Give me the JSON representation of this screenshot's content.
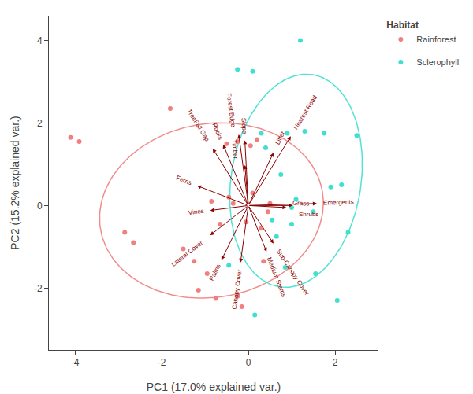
{
  "chart_data": {
    "type": "scatter",
    "xlabel": "PC1 (17.0% explained var.)",
    "ylabel": "PC2 (15.2% explained var.)",
    "xlim": [
      -4.6,
      3.0
    ],
    "ylim": [
      -3.5,
      4.6
    ],
    "xticks": [
      -4,
      -2,
      0,
      2
    ],
    "yticks": [
      -2,
      0,
      2,
      4
    ],
    "grid": false,
    "legend": "upper right",
    "legend_title": "Habitat",
    "series": [
      {
        "name": "Rainforest",
        "color": "#F08080",
        "marker": "circle",
        "values": [
          [
            -4.1,
            1.65
          ],
          [
            -3.9,
            1.55
          ],
          [
            -2.85,
            -0.65
          ],
          [
            -2.65,
            -0.9
          ],
          [
            -1.8,
            2.35
          ],
          [
            -1.5,
            -1.05
          ],
          [
            -1.25,
            -1.35
          ],
          [
            -1.15,
            -2.05
          ],
          [
            -0.95,
            -1.65
          ],
          [
            -0.85,
            0.1
          ],
          [
            -0.75,
            -2.25
          ],
          [
            -0.65,
            -0.45
          ],
          [
            -0.5,
            1.5
          ],
          [
            -0.45,
            0.2
          ],
          [
            -0.35,
            0.05
          ],
          [
            -0.25,
            1.55
          ],
          [
            -0.25,
            -2.2
          ],
          [
            -0.15,
            -2.45
          ],
          [
            -0.05,
            -0.4
          ],
          [
            0.05,
            1.45
          ],
          [
            0.1,
            0.3
          ],
          [
            0.2,
            1.6
          ],
          [
            0.3,
            -0.55
          ],
          [
            0.35,
            -1.35
          ],
          [
            0.45,
            -0.15
          ],
          [
            0.5,
            0.05
          ]
        ],
        "ellipse": {
          "cx": -0.85,
          "cy": -0.12,
          "width": 5.2,
          "height": 4.2,
          "angle": 12
        }
      },
      {
        "name": "Sclerophyll",
        "color": "#40E0D0",
        "marker": "circle",
        "values": [
          [
            -0.45,
            -1.45
          ],
          [
            -0.25,
            3.3
          ],
          [
            0.1,
            3.25
          ],
          [
            0.15,
            -2.65
          ],
          [
            0.3,
            1.75
          ],
          [
            0.4,
            1.4
          ],
          [
            0.55,
            -0.35
          ],
          [
            0.65,
            -0.75
          ],
          [
            0.75,
            0.75
          ],
          [
            0.85,
            -1.5
          ],
          [
            0.9,
            1.75
          ],
          [
            1.0,
            -0.05
          ],
          [
            1.0,
            -0.45
          ],
          [
            1.1,
            0.15
          ],
          [
            1.2,
            4.0
          ],
          [
            1.3,
            1.8
          ],
          [
            1.5,
            -0.15
          ],
          [
            1.55,
            -1.65
          ],
          [
            1.75,
            1.75
          ],
          [
            1.9,
            0.45
          ],
          [
            2.05,
            -2.3
          ],
          [
            2.15,
            0.5
          ],
          [
            2.3,
            -0.65
          ],
          [
            2.5,
            1.7
          ]
        ],
        "ellipse": {
          "cx": 1.1,
          "cy": 0.6,
          "width": 3.0,
          "height": 5.2,
          "angle": -8
        }
      }
    ],
    "annotations": [
      {
        "text": "TreeFall Gap",
        "x": -0.82,
        "y": 1.38,
        "color": "#8B0000"
      },
      {
        "text": "Rocks",
        "x": -0.58,
        "y": 1.48,
        "color": "#8B0000"
      },
      {
        "text": "Slope",
        "x": -0.08,
        "y": 1.58,
        "color": "#8B0000"
      },
      {
        "text": "Forest Edge",
        "x": -0.22,
        "y": 1.72,
        "color": "#8B0000"
      },
      {
        "text": "Timber",
        "x": -0.08,
        "y": 0.98,
        "color": "#8B0000"
      },
      {
        "text": "Litter",
        "x": 0.58,
        "y": 1.28,
        "color": "#8B0000"
      },
      {
        "text": "Nearest Road",
        "x": 0.98,
        "y": 1.68,
        "color": "#8B0000"
      },
      {
        "text": "Emergents",
        "x": 1.58,
        "y": 0.05,
        "color": "#8B0000"
      },
      {
        "text": "Shrubs",
        "x": 1.02,
        "y": 0.0,
        "color": "#8B0000"
      },
      {
        "text": "Grass",
        "x": 0.88,
        "y": -0.05,
        "color": "#8B0000"
      },
      {
        "text": "Sub-Canopy Cover",
        "x": 0.58,
        "y": -0.92,
        "color": "#8B0000"
      },
      {
        "text": "Medium Stems",
        "x": 0.42,
        "y": -1.12,
        "color": "#8B0000"
      },
      {
        "text": "Canopy Cover",
        "x": -0.18,
        "y": -1.38,
        "color": "#8B0000"
      },
      {
        "text": "Palms",
        "x": -0.62,
        "y": -1.32,
        "color": "#8B0000"
      },
      {
        "text": "Lateral Cover",
        "x": -0.88,
        "y": -0.72,
        "color": "#8B0000"
      },
      {
        "text": "Vines",
        "x": -0.88,
        "y": -0.12,
        "color": "#8B0000"
      },
      {
        "text": "Ferns",
        "x": -1.18,
        "y": 0.48,
        "color": "#8B0000"
      }
    ]
  }
}
